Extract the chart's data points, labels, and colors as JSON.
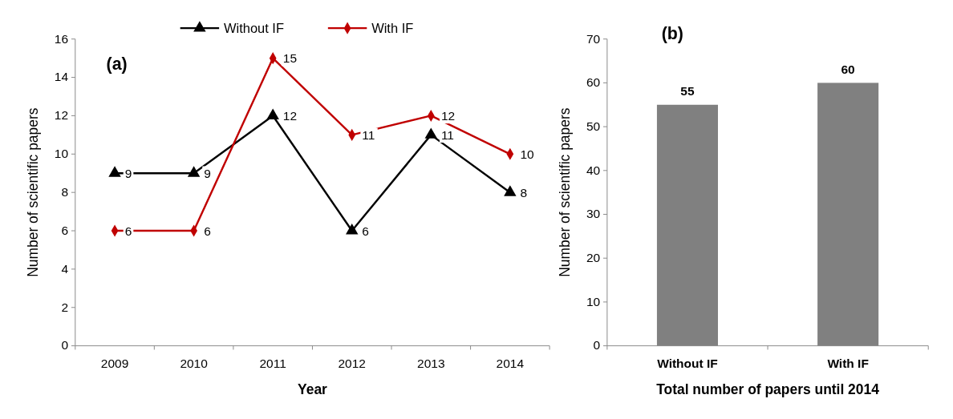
{
  "chart_data": [
    {
      "type": "line",
      "xlabel": "Year",
      "ylabel": "Number of scientific papers",
      "categories": [
        "2009",
        "2010",
        "2011",
        "2012",
        "2013",
        "2014"
      ],
      "series": [
        {
          "name": "Without IF",
          "color": "#000000",
          "marker": "triangle",
          "values": [
            9,
            9,
            12,
            6,
            11,
            8
          ]
        },
        {
          "name": "With IF",
          "color": "#c00000",
          "marker": "diamond",
          "values": [
            6,
            6,
            15,
            11,
            12,
            10
          ]
        }
      ],
      "ylim": [
        0,
        16
      ],
      "yticks": [
        0,
        2,
        4,
        6,
        8,
        10,
        12,
        14,
        16
      ],
      "data_labels": true,
      "legend": "top",
      "grid": false,
      "annotations": [
        "(a)"
      ]
    },
    {
      "type": "bar",
      "xlabel": "Total number of papers until 2014",
      "ylabel": "Number of scientific papers",
      "categories": [
        "Without IF",
        "With IF"
      ],
      "values": [
        55,
        60
      ],
      "color": "#808080",
      "ylim": [
        0,
        70
      ],
      "yticks": [
        0,
        10,
        20,
        30,
        40,
        50,
        60,
        70
      ],
      "data_labels": true,
      "grid": false,
      "legend": false,
      "annotations": [
        "(b)"
      ]
    }
  ]
}
